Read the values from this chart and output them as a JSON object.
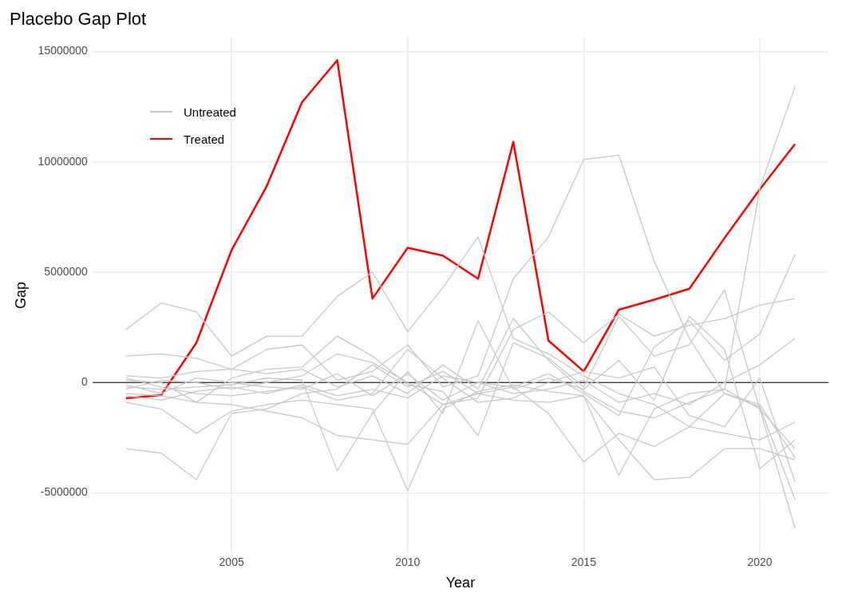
{
  "chart_data": {
    "type": "line",
    "title": "Placebo Gap Plot",
    "xlabel": "Year",
    "ylabel": "Gap",
    "x": [
      2002,
      2003,
      2004,
      2005,
      2006,
      2007,
      2008,
      2009,
      2010,
      2011,
      2012,
      2013,
      2014,
      2015,
      2016,
      2017,
      2018,
      2019,
      2020,
      2021
    ],
    "xlim": [
      2001.05,
      2021.95
    ],
    "xticks": [
      2005,
      2010,
      2015,
      2020
    ],
    "ylim": [
      -7750000,
      15650000
    ],
    "yticks": [
      -5000000,
      0,
      5000000,
      10000000,
      15000000
    ],
    "grid": true,
    "legend": "top left",
    "marker": "none",
    "line_style": "solid",
    "ref_lines": [
      {
        "axis": "y",
        "value": 0,
        "color": "#000000"
      }
    ],
    "series": [
      {
        "name": "Untreated",
        "color": "#c8c8c8",
        "values": [
          2400000,
          3600000,
          3200000,
          1200000,
          2100000,
          2100000,
          3900000,
          5000000,
          2300000,
          4300000,
          6600000,
          2000000,
          1300000,
          300000,
          -500000,
          -1000000,
          -2000000,
          -500000,
          -1100000,
          -5300000
        ]
      },
      {
        "color": "#c8c8c8",
        "values": [
          1200000,
          1300000,
          1100000,
          600000,
          1500000,
          1700000,
          100000,
          500000,
          1700000,
          -200000,
          300000,
          4700000,
          6600000,
          10100000,
          10300000,
          5500000,
          2000000,
          -500000,
          -1000000,
          -3400000
        ]
      },
      {
        "color": "#c8c8c8",
        "values": [
          300000,
          200000,
          500000,
          600000,
          400000,
          600000,
          -200000,
          300000,
          -500000,
          800000,
          -300000,
          2900000,
          1000000,
          -400000,
          -1300000,
          -1600000,
          -900000,
          -300000,
          8800000,
          13400000
        ]
      },
      {
        "color": "#c8c8c8",
        "values": [
          -3000000,
          -3200000,
          -4400000,
          -1400000,
          -1200000,
          -500000,
          -300000,
          800000,
          -200000,
          500000,
          -500000,
          -800000,
          -900000,
          -600000,
          -4200000,
          -1200000,
          -500000,
          -300000,
          -1200000,
          -3000000
        ]
      },
      {
        "color": "#c8c8c8",
        "values": [
          -900000,
          -1200000,
          -2300000,
          -1300000,
          -1000000,
          -800000,
          -1000000,
          -1200000,
          -4900000,
          -1200000,
          -400000,
          -100000,
          -400000,
          -600000,
          -2600000,
          -4400000,
          -4300000,
          -3000000,
          -3000000,
          -3500000
        ]
      },
      {
        "color": "#c8c8c8",
        "values": [
          -500000,
          -600000,
          -900000,
          -1000000,
          -1300000,
          -1600000,
          -2400000,
          -2600000,
          -2800000,
          -1000000,
          -500000,
          -200000,
          -1400000,
          -3600000,
          -2300000,
          -2900000,
          -2000000,
          -2300000,
          -2600000,
          -1800000
        ]
      },
      {
        "color": "#c8c8c8",
        "values": [
          -200000,
          -300000,
          -200000,
          -100000,
          200000,
          100000,
          -4000000,
          -1400000,
          500000,
          -1400000,
          2800000,
          -300000,
          200000,
          -300000,
          1000000,
          -800000,
          3000000,
          1500000,
          -3900000,
          -2600000
        ]
      },
      {
        "color": "#c8c8c8",
        "values": [
          100000,
          0,
          -900000,
          200000,
          600000,
          700000,
          2100000,
          1200000,
          -100000,
          -400000,
          -2400000,
          1800000,
          1100000,
          -200000,
          3000000,
          1200000,
          1700000,
          4200000,
          -1200000,
          -6600000
        ]
      },
      {
        "color": "#c8c8c8",
        "values": [
          -300000,
          100000,
          0,
          -300000,
          0,
          300000,
          1300000,
          900000,
          0,
          -1000000,
          -700000,
          2400000,
          3200000,
          1800000,
          3100000,
          2100000,
          2600000,
          2900000,
          3500000,
          3800000
        ]
      },
      {
        "color": "#c8c8c8",
        "values": [
          -100000,
          -500000,
          200000,
          0,
          -200000,
          -300000,
          400000,
          -600000,
          400000,
          -800000,
          0,
          -200000,
          400000,
          -500000,
          -1500000,
          1600000,
          2800000,
          1000000,
          2200000,
          5800000
        ]
      },
      {
        "color": "#c8c8c8",
        "values": [
          -600000,
          -800000,
          -400000,
          -200000,
          -500000,
          -100000,
          -600000,
          -300000,
          -700000,
          300000,
          0,
          -500000,
          -300000,
          100000,
          -900000,
          -500000,
          -1000000,
          0,
          800000,
          2000000
        ]
      },
      {
        "color": "#c8c8c8",
        "values": [
          200000,
          -200000,
          -500000,
          -600000,
          -400000,
          -200000,
          -800000,
          -500000,
          1500000,
          200000,
          -900000,
          -700000,
          0,
          500000,
          200000,
          700000,
          -1500000,
          -2000000,
          200000,
          -4500000
        ]
      },
      {
        "name": "Treated",
        "color": "#ff0000",
        "values": [
          -710000,
          -570000,
          1800000,
          6000000,
          8900000,
          12700000,
          14600000,
          3800000,
          6100000,
          5750000,
          4700000,
          10900000,
          1900000,
          500000,
          3300000,
          3750000,
          4250000,
          6550000,
          8750000,
          10800000
        ]
      }
    ]
  }
}
